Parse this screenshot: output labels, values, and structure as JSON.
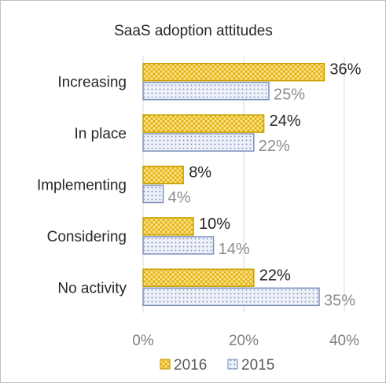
{
  "chart_data": {
    "type": "bar",
    "orientation": "horizontal",
    "title": "SaaS adoption  attitudes",
    "categories": [
      "Increasing",
      "In place",
      "Implementing",
      "Considering",
      "No activity"
    ],
    "series": [
      {
        "name": "2016",
        "values": [
          36,
          24,
          8,
          10,
          22
        ],
        "labels": [
          "36%",
          "24%",
          "8%",
          "10%",
          "22%"
        ],
        "color": "#f5c518",
        "border": "#c9a000"
      },
      {
        "name": "2015",
        "values": [
          25,
          22,
          4,
          14,
          35
        ],
        "labels": [
          "25%",
          "22%",
          "4%",
          "14%",
          "35%"
        ],
        "color": "#c9d3e8",
        "border": "#7f93c0"
      }
    ],
    "xlim": [
      0,
      40
    ],
    "xticks": [
      "0%",
      "20%",
      "40%"
    ],
    "grid": true,
    "legend": "bottom"
  }
}
